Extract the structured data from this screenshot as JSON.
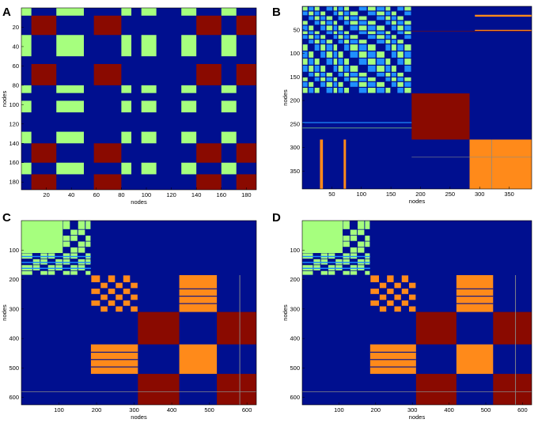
{
  "colors": {
    "background": "#000f8f",
    "green": "#a6ff7e",
    "darkred": "#8a0a00",
    "orange": "#ff8a1a",
    "lightblue": "#1f8fff",
    "gray": "#888888"
  },
  "chart_data": [
    {
      "type": "heatmap",
      "panel_label": "A",
      "xlabel": "nodes",
      "ylabel": "nodes",
      "xlim": [
        0,
        188
      ],
      "ylim": [
        0,
        188
      ],
      "xticks": [
        20,
        40,
        60,
        80,
        100,
        120,
        140,
        160,
        180
      ],
      "yticks": [
        20,
        40,
        60,
        80,
        100,
        120,
        140,
        160,
        180
      ],
      "colormap_hint": "green=within-group similarity, darkred=cross-group similarity, blue=none",
      "blocks": [
        {
          "x": [
            0,
            8
          ],
          "y": [
            0,
            8
          ],
          "color": "green"
        },
        {
          "x": [
            0,
            8
          ],
          "y": [
            8,
            24
          ],
          "color": "darkred"
        }
      ],
      "group_boundaries": [
        0,
        8,
        28,
        50,
        58,
        80,
        88,
        96,
        108,
        128,
        140,
        160,
        172,
        188
      ],
      "group_types": [
        "g",
        "r",
        "g",
        "b",
        "r",
        "g",
        "b",
        "g",
        "b",
        "g",
        "r",
        "g",
        "r"
      ]
    },
    {
      "type": "heatmap",
      "panel_label": "B",
      "xlabel": "nodes",
      "ylabel": "nodes",
      "xlim": [
        0,
        388
      ],
      "ylim": [
        0,
        388
      ],
      "xticks": [
        50,
        100,
        150,
        200,
        250,
        300,
        350
      ],
      "yticks": [
        50,
        100,
        150,
        200,
        250,
        300,
        350
      ],
      "blocks": [
        {
          "x": [
            0,
            185
          ],
          "y": [
            0,
            185
          ],
          "color": "green_lightblue_pattern"
        },
        {
          "x": [
            185,
            283
          ],
          "y": [
            185,
            283
          ],
          "color": "darkred"
        },
        {
          "x": [
            283,
            388
          ],
          "y": [
            283,
            388
          ],
          "color": "orange"
        }
      ]
    },
    {
      "type": "heatmap",
      "panel_label": "C",
      "xlabel": "nodes",
      "ylabel": "nodes",
      "xlim": [
        0,
        625
      ],
      "ylim": [
        0,
        625
      ],
      "xticks": [
        100,
        200,
        300,
        400,
        500,
        600
      ],
      "yticks": [
        100,
        200,
        300,
        400,
        500,
        600
      ],
      "blocks": [
        {
          "x": [
            0,
            185
          ],
          "y": [
            0,
            185
          ],
          "color": "green"
        },
        {
          "x": [
            185,
            310
          ],
          "y": [
            185,
            310
          ],
          "color": "orange"
        },
        {
          "x": [
            310,
            420
          ],
          "y": [
            310,
            420
          ],
          "color": "darkred"
        },
        {
          "x": [
            420,
            520
          ],
          "y": [
            420,
            520
          ],
          "color": "orange"
        },
        {
          "x": [
            520,
            625
          ],
          "y": [
            520,
            625
          ],
          "color": "darkred"
        }
      ]
    },
    {
      "type": "heatmap",
      "panel_label": "D",
      "xlabel": "nodes",
      "ylabel": "nodes",
      "xlim": [
        0,
        625
      ],
      "ylim": [
        0,
        625
      ],
      "xticks": [
        100,
        200,
        300,
        400,
        500,
        600
      ],
      "yticks": [
        100,
        200,
        300,
        400,
        500,
        600
      ],
      "blocks": [
        {
          "x": [
            0,
            185
          ],
          "y": [
            0,
            185
          ],
          "color": "green"
        },
        {
          "x": [
            185,
            310
          ],
          "y": [
            185,
            310
          ],
          "color": "orange"
        },
        {
          "x": [
            310,
            420
          ],
          "y": [
            310,
            420
          ],
          "color": "darkred"
        },
        {
          "x": [
            420,
            520
          ],
          "y": [
            420,
            520
          ],
          "color": "orange"
        },
        {
          "x": [
            520,
            625
          ],
          "y": [
            520,
            625
          ],
          "color": "darkred"
        }
      ]
    }
  ]
}
